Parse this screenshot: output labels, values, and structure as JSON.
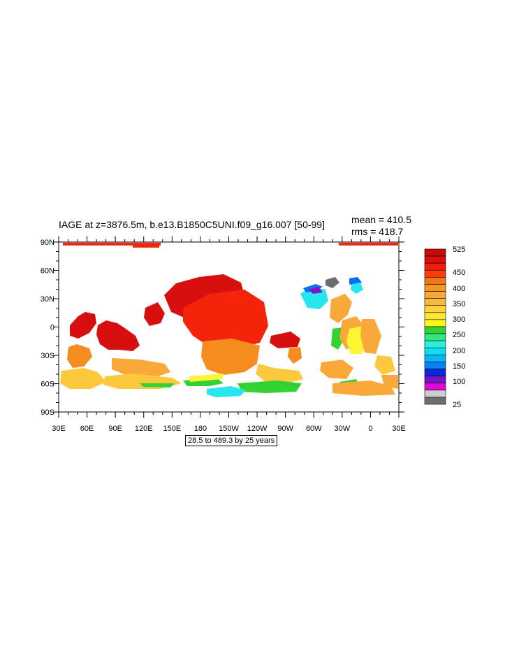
{
  "title": "IAGE at z=3876.5m, b.e13.B1850C5UNI.f09_g16.007 [50-99]",
  "stats": {
    "mean": "mean = 410.5",
    "rms": "rms = 418.7"
  },
  "info": "28.5 to 489.3 by 25 years",
  "axes": {
    "y_labels": [
      "90N",
      "60N",
      "30N",
      "0",
      "30S",
      "60S",
      "90S"
    ],
    "x_labels": [
      "30E",
      "60E",
      "90E",
      "120E",
      "150E",
      "180",
      "150W",
      "120W",
      "90W",
      "60W",
      "30W",
      "0",
      "30E"
    ]
  },
  "colorbar": {
    "labels": [
      "525",
      "450",
      "400",
      "350",
      "300",
      "250",
      "200",
      "150",
      "100",
      "25"
    ],
    "colors": [
      "#c80a0a",
      "#dc0f0f",
      "#f01e0a",
      "#ff3c0a",
      "#f07814",
      "#f5961e",
      "#f7a83a",
      "#f9b93c",
      "#ffd23c",
      "#ffe632",
      "#fff51e",
      "#32d232",
      "#32e682",
      "#28f0dc",
      "#14dcf0",
      "#0ab4ff",
      "#0a82f0",
      "#0a28dc",
      "#7814c8",
      "#dc0ad2",
      "#cccccc",
      "#6e6e6e"
    ]
  },
  "map_palette": {
    "dark_red": "#d70f0f",
    "red": "#f5230a",
    "orange": "#f58c1e",
    "light_orange": "#f9a83a",
    "yellow_orange": "#fcc83c",
    "yellow": "#fff532",
    "green": "#32d232",
    "cyan": "#28e6f0",
    "blue": "#0a6ef0",
    "purple": "#8214c8",
    "magenta": "#dc0ad2",
    "gray": "#6e6e6e"
  }
}
